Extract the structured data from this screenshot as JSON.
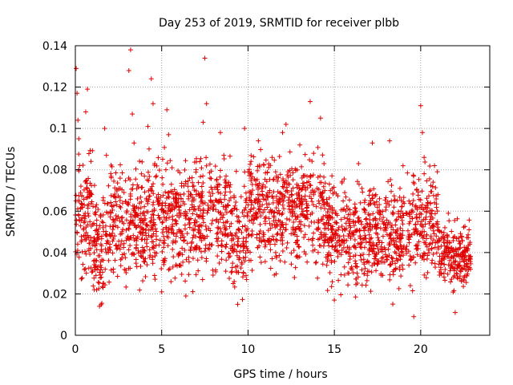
{
  "chart_data": {
    "type": "scatter",
    "title": "Day 253 of 2019, SRMTID for receiver plbb",
    "xlabel": "GPS time / hours",
    "ylabel": "SRMTID / TECUs",
    "xlim": [
      0,
      24
    ],
    "ylim": [
      0,
      0.14
    ],
    "xticks": [
      0,
      5,
      10,
      15,
      20
    ],
    "xtick_labels": [
      "0",
      "5",
      "10",
      "15",
      "20"
    ],
    "yticks": [
      0,
      0.02,
      0.04,
      0.06,
      0.08,
      0.1,
      0.12,
      0.14
    ],
    "ytick_labels": [
      "0",
      "0.02",
      "0.04",
      "0.06",
      "0.08",
      "0.1",
      "0.12",
      "0.14"
    ],
    "grid": true,
    "marker": "+",
    "color": "#e00000",
    "series": [
      {
        "name": "SRMTID",
        "points": [
          [
            0.05,
            0.129
          ],
          [
            0.1,
            0.117
          ],
          [
            0.15,
            0.104
          ],
          [
            0.2,
            0.095
          ],
          [
            0.25,
            0.082
          ],
          [
            0.3,
            0.069
          ],
          [
            0.4,
            0.063
          ],
          [
            0.5,
            0.058
          ],
          [
            0.6,
            0.108
          ],
          [
            0.7,
            0.119
          ],
          [
            0.8,
            0.067
          ],
          [
            0.9,
            0.046
          ],
          [
            1.0,
            0.031
          ],
          [
            1.1,
            0.022
          ],
          [
            1.2,
            0.036
          ],
          [
            1.3,
            0.049
          ],
          [
            1.4,
            0.014
          ],
          [
            1.5,
            0.028
          ],
          [
            1.6,
            0.052
          ],
          [
            1.7,
            0.1
          ],
          [
            1.8,
            0.087
          ],
          [
            1.9,
            0.059
          ],
          [
            2.0,
            0.044
          ],
          [
            2.2,
            0.032
          ],
          [
            2.4,
            0.063
          ],
          [
            2.6,
            0.071
          ],
          [
            2.8,
            0.054
          ],
          [
            3.0,
            0.047
          ],
          [
            3.1,
            0.128
          ],
          [
            3.2,
            0.138
          ],
          [
            3.3,
            0.107
          ],
          [
            3.4,
            0.093
          ],
          [
            3.6,
            0.066
          ],
          [
            3.8,
            0.05
          ],
          [
            4.0,
            0.077
          ],
          [
            4.2,
            0.101
          ],
          [
            4.4,
            0.124
          ],
          [
            4.5,
            0.112
          ],
          [
            4.6,
            0.083
          ],
          [
            4.8,
            0.058
          ],
          [
            5.0,
            0.021
          ],
          [
            5.1,
            0.045
          ],
          [
            5.3,
            0.109
          ],
          [
            5.4,
            0.097
          ],
          [
            5.6,
            0.081
          ],
          [
            5.8,
            0.062
          ],
          [
            6.0,
            0.051
          ],
          [
            6.2,
            0.039
          ],
          [
            6.4,
            0.019
          ],
          [
            6.6,
            0.056
          ],
          [
            6.8,
            0.072
          ],
          [
            7.0,
            0.068
          ],
          [
            7.2,
            0.084
          ],
          [
            7.4,
            0.103
          ],
          [
            7.5,
            0.134
          ],
          [
            7.6,
            0.112
          ],
          [
            7.8,
            0.076
          ],
          [
            8.0,
            0.061
          ],
          [
            8.2,
            0.049
          ],
          [
            8.4,
            0.098
          ],
          [
            8.6,
            0.087
          ],
          [
            8.8,
            0.055
          ],
          [
            9.0,
            0.042
          ],
          [
            9.2,
            0.026
          ],
          [
            9.4,
            0.015
          ],
          [
            9.6,
            0.067
          ],
          [
            9.8,
            0.1
          ],
          [
            10.0,
            0.079
          ],
          [
            10.2,
            0.063
          ],
          [
            10.4,
            0.058
          ],
          [
            10.6,
            0.094
          ],
          [
            10.8,
            0.071
          ],
          [
            11.0,
            0.054
          ],
          [
            11.2,
            0.045
          ],
          [
            11.4,
            0.086
          ],
          [
            11.6,
            0.079
          ],
          [
            11.8,
            0.066
          ],
          [
            12.0,
            0.098
          ],
          [
            12.2,
            0.102
          ],
          [
            12.4,
            0.073
          ],
          [
            12.6,
            0.059
          ],
          [
            12.8,
            0.038
          ],
          [
            13.0,
            0.092
          ],
          [
            13.2,
            0.077
          ],
          [
            13.4,
            0.06
          ],
          [
            13.6,
            0.113
          ],
          [
            13.8,
            0.088
          ],
          [
            14.0,
            0.071
          ],
          [
            14.2,
            0.105
          ],
          [
            14.4,
            0.083
          ],
          [
            14.6,
            0.064
          ],
          [
            14.8,
            0.047
          ],
          [
            15.0,
            0.017
          ],
          [
            15.2,
            0.038
          ],
          [
            15.4,
            0.056
          ],
          [
            15.6,
            0.069
          ],
          [
            15.8,
            0.048
          ],
          [
            16.0,
            0.033
          ],
          [
            16.2,
            0.059
          ],
          [
            16.4,
            0.083
          ],
          [
            16.6,
            0.071
          ],
          [
            16.8,
            0.052
          ],
          [
            17.0,
            0.039
          ],
          [
            17.2,
            0.093
          ],
          [
            17.4,
            0.068
          ],
          [
            17.6,
            0.045
          ],
          [
            17.8,
            0.029
          ],
          [
            18.0,
            0.062
          ],
          [
            18.2,
            0.094
          ],
          [
            18.4,
            0.051
          ],
          [
            18.6,
            0.037
          ],
          [
            18.8,
            0.071
          ],
          [
            19.0,
            0.058
          ],
          [
            19.2,
            0.043
          ],
          [
            19.4,
            0.024
          ],
          [
            19.6,
            0.009
          ],
          [
            19.8,
            0.049
          ],
          [
            20.0,
            0.111
          ],
          [
            20.1,
            0.098
          ],
          [
            20.2,
            0.086
          ],
          [
            20.4,
            0.064
          ],
          [
            20.6,
            0.056
          ],
          [
            20.8,
            0.082
          ],
          [
            21.0,
            0.068
          ],
          [
            21.2,
            0.047
          ],
          [
            21.4,
            0.052
          ],
          [
            21.6,
            0.059
          ],
          [
            21.8,
            0.038
          ],
          [
            22.0,
            0.011
          ],
          [
            22.2,
            0.047
          ],
          [
            22.4,
            0.032
          ],
          [
            22.6,
            0.041
          ],
          [
            22.8,
            0.051
          ]
        ],
        "dense_bands": [
          {
            "x": [
              0.0,
              1.0
            ],
            "center": 0.058,
            "spread": 0.014
          },
          {
            "x": [
              1.0,
              2.0
            ],
            "center": 0.045,
            "spread": 0.012
          },
          {
            "x": [
              2.0,
              5.0
            ],
            "center": 0.056,
            "spread": 0.013
          },
          {
            "x": [
              5.0,
              9.0
            ],
            "center": 0.056,
            "spread": 0.013
          },
          {
            "x": [
              9.0,
              10.0
            ],
            "center": 0.048,
            "spread": 0.012
          },
          {
            "x": [
              10.0,
              14.5
            ],
            "center": 0.061,
            "spread": 0.013
          },
          {
            "x": [
              14.5,
              16.0
            ],
            "center": 0.05,
            "spread": 0.012
          },
          {
            "x": [
              16.0,
              19.5
            ],
            "center": 0.048,
            "spread": 0.012
          },
          {
            "x": [
              19.5,
              21.0
            ],
            "center": 0.054,
            "spread": 0.012
          },
          {
            "x": [
              21.0,
              22.9
            ],
            "center": 0.039,
            "spread": 0.007
          }
        ]
      }
    ]
  }
}
